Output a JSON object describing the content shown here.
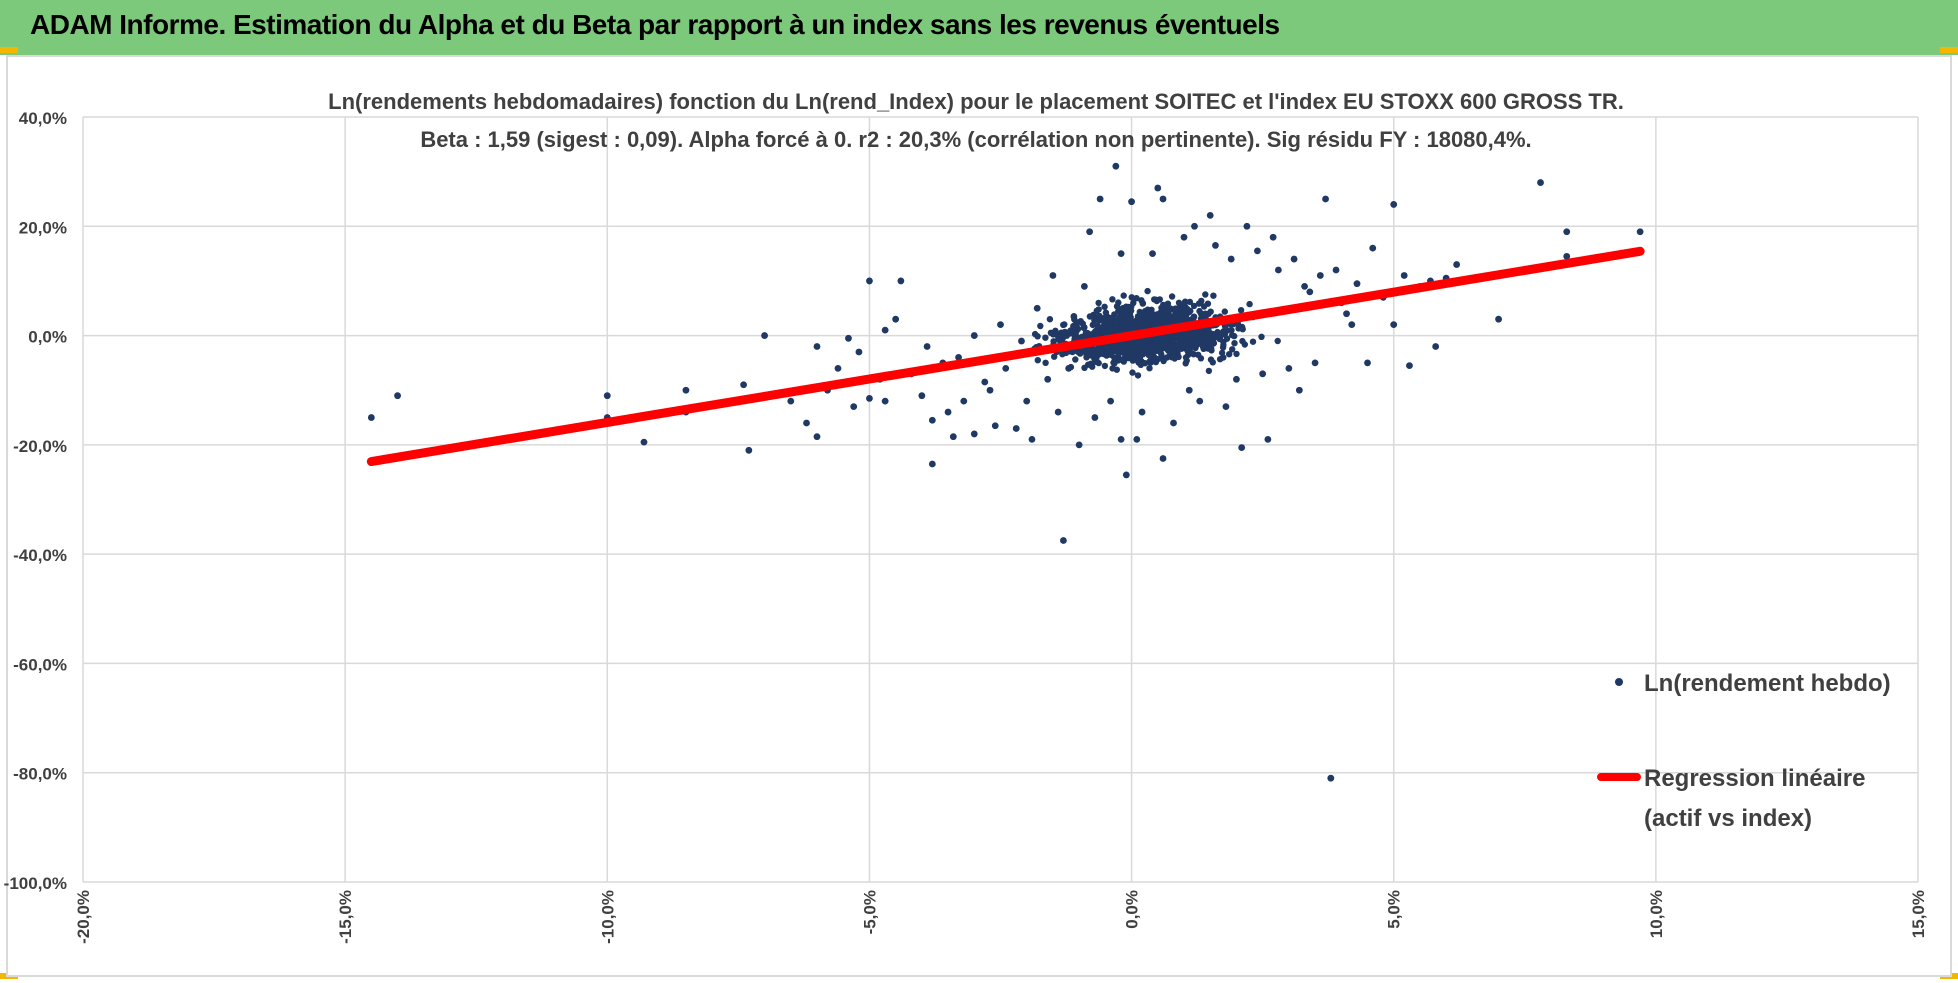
{
  "banner": {
    "title": "ADAM Informe. Estimation du Alpha et du Beta par rapport à un index sans les revenus éventuels",
    "color": "#7dc97c"
  },
  "chart_data": {
    "type": "scatter",
    "title": "Ln(rendements hebdomadaires) fonction du Ln(rend_Index) pour le placement SOITEC et l'index EU STOXX 600 GROSS TR.",
    "subtitle": "Beta : 1,59 (sigest : 0,09).  Alpha forcé à 0. r2 : 20,3% (corrélation non pertinente). Sig résidu FY : 18080,4%.",
    "xlabel": "",
    "ylabel": "",
    "xlim": [
      -0.2,
      0.15
    ],
    "ylim": [
      -1.0,
      0.4
    ],
    "x_ticks": [
      -0.2,
      -0.15,
      -0.1,
      -0.05,
      0.0,
      0.05,
      0.1,
      0.15
    ],
    "x_tick_labels": [
      "-20,0%",
      "-15,0%",
      "-10,0%",
      "-5,0%",
      "0,0%",
      "5,0%",
      "10,0%",
      "15,0%"
    ],
    "y_ticks": [
      0.4,
      0.2,
      0.0,
      -0.2,
      -0.4,
      -0.6,
      -0.8,
      -1.0
    ],
    "y_tick_labels": [
      "40,0%",
      "20,0%",
      "0,0%",
      "-20,0%",
      "-40,0%",
      "-60,0%",
      "-80,0%",
      "-100,0%"
    ],
    "grid": true,
    "legend_position": "bottom-right",
    "series": [
      {
        "name": "Ln(rendement hebdo)",
        "kind": "scatter",
        "color": "#203864",
        "outliers": [
          [
            -0.145,
            -0.15
          ],
          [
            -0.14,
            -0.11
          ],
          [
            -0.1,
            -0.11
          ],
          [
            -0.1,
            -0.15
          ],
          [
            -0.093,
            -0.195
          ],
          [
            -0.085,
            -0.1
          ],
          [
            -0.085,
            -0.14
          ],
          [
            -0.074,
            -0.09
          ],
          [
            -0.073,
            -0.21
          ],
          [
            -0.07,
            0.0
          ],
          [
            -0.065,
            -0.12
          ],
          [
            -0.062,
            -0.16
          ],
          [
            -0.06,
            -0.02
          ],
          [
            -0.06,
            -0.185
          ],
          [
            -0.058,
            -0.1
          ],
          [
            -0.056,
            -0.06
          ],
          [
            -0.054,
            -0.005
          ],
          [
            -0.053,
            -0.13
          ],
          [
            -0.052,
            -0.03
          ],
          [
            -0.05,
            0.1
          ],
          [
            -0.048,
            -0.08
          ],
          [
            -0.05,
            -0.115
          ],
          [
            -0.047,
            0.01
          ],
          [
            -0.045,
            0.03
          ],
          [
            -0.047,
            -0.12
          ],
          [
            -0.044,
            0.1
          ],
          [
            -0.042,
            -0.07
          ],
          [
            -0.04,
            -0.11
          ],
          [
            -0.039,
            -0.02
          ],
          [
            -0.04,
            -0.065
          ],
          [
            -0.038,
            -0.155
          ],
          [
            -0.038,
            -0.235
          ],
          [
            -0.036,
            -0.05
          ],
          [
            -0.035,
            -0.14
          ],
          [
            -0.034,
            -0.185
          ],
          [
            -0.033,
            -0.04
          ],
          [
            -0.032,
            -0.12
          ],
          [
            -0.03,
            -0.18
          ],
          [
            -0.03,
            0.0
          ],
          [
            -0.028,
            -0.085
          ],
          [
            -0.027,
            -0.1
          ],
          [
            -0.026,
            -0.165
          ],
          [
            -0.025,
            0.02
          ],
          [
            -0.024,
            -0.06
          ],
          [
            -0.022,
            -0.17
          ],
          [
            -0.021,
            -0.01
          ],
          [
            -0.02,
            -0.12
          ],
          [
            -0.019,
            -0.19
          ],
          [
            -0.018,
            0.05
          ],
          [
            -0.016,
            -0.08
          ],
          [
            -0.015,
            0.11
          ],
          [
            -0.014,
            -0.14
          ],
          [
            -0.012,
            -0.06
          ],
          [
            -0.013,
            -0.375
          ],
          [
            -0.011,
            0.035
          ],
          [
            -0.01,
            -0.2
          ],
          [
            -0.009,
            0.09
          ],
          [
            -0.008,
            0.19
          ],
          [
            -0.007,
            -0.15
          ],
          [
            -0.006,
            0.25
          ],
          [
            -0.004,
            -0.12
          ],
          [
            -0.003,
            0.31
          ],
          [
            -0.002,
            0.15
          ],
          [
            -0.001,
            -0.255
          ],
          [
            -0.002,
            -0.19
          ],
          [
            0.0,
            0.245
          ],
          [
            0.001,
            -0.19
          ],
          [
            0.002,
            -0.14
          ],
          [
            0.004,
            0.15
          ],
          [
            0.005,
            0.27
          ],
          [
            0.006,
            -0.225
          ],
          [
            0.006,
            0.25
          ],
          [
            0.008,
            -0.16
          ],
          [
            0.01,
            0.18
          ],
          [
            0.011,
            -0.1
          ],
          [
            0.012,
            0.2
          ],
          [
            0.013,
            -0.12
          ],
          [
            0.015,
            0.22
          ],
          [
            0.016,
            0.165
          ],
          [
            0.018,
            -0.13
          ],
          [
            0.019,
            0.14
          ],
          [
            0.02,
            -0.08
          ],
          [
            0.021,
            -0.205
          ],
          [
            0.022,
            0.2
          ],
          [
            0.024,
            0.155
          ],
          [
            0.025,
            -0.07
          ],
          [
            0.026,
            -0.19
          ],
          [
            0.027,
            0.18
          ],
          [
            0.028,
            0.12
          ],
          [
            0.03,
            -0.06
          ],
          [
            0.031,
            0.14
          ],
          [
            0.032,
            -0.1
          ],
          [
            0.033,
            0.09
          ],
          [
            0.034,
            0.08
          ],
          [
            0.035,
            -0.05
          ],
          [
            0.036,
            0.11
          ],
          [
            0.037,
            0.25
          ],
          [
            0.038,
            -0.81
          ],
          [
            0.039,
            0.12
          ],
          [
            0.04,
            0.06
          ],
          [
            0.041,
            0.04
          ],
          [
            0.042,
            0.02
          ],
          [
            0.043,
            0.095
          ],
          [
            0.045,
            -0.05
          ],
          [
            0.046,
            0.16
          ],
          [
            0.048,
            0.07
          ],
          [
            0.05,
            0.24
          ],
          [
            0.05,
            0.02
          ],
          [
            0.052,
            0.11
          ],
          [
            0.053,
            -0.055
          ],
          [
            0.055,
            0.09
          ],
          [
            0.057,
            0.1
          ],
          [
            0.058,
            -0.02
          ],
          [
            0.06,
            0.105
          ],
          [
            0.062,
            0.13
          ],
          [
            0.07,
            0.03
          ],
          [
            0.078,
            0.28
          ],
          [
            0.083,
            0.19
          ],
          [
            0.097,
            0.19
          ],
          [
            0.083,
            0.145
          ]
        ]
      },
      {
        "name": "Regression linéaire\n(actif vs index)",
        "kind": "line",
        "color": "#ff0000",
        "slope": 1.59,
        "intercept": 0.0,
        "x_range": [
          -0.145,
          0.097
        ]
      }
    ]
  }
}
